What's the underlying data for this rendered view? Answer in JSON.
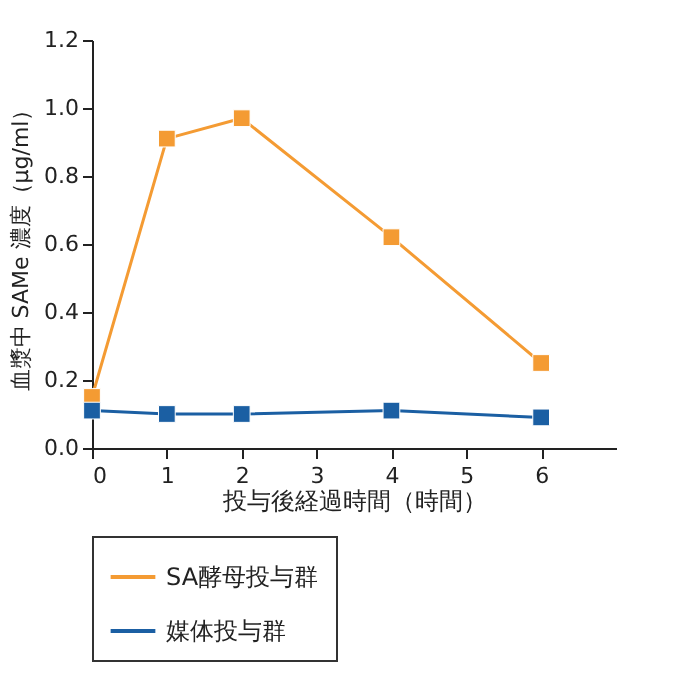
{
  "chart_data": {
    "type": "line",
    "xlabel": "投与後経過時間（時間）",
    "ylabel": "血漿中 SAMe 濃度（μg/ml）",
    "x": [
      0,
      1,
      2,
      4,
      6
    ],
    "series": [
      {
        "name": "SA酵母投与群",
        "color": "#f49b33",
        "values": [
          0.15,
          0.91,
          0.97,
          0.62,
          0.25
        ]
      },
      {
        "name": "媒体投与群",
        "color": "#1b5fa3",
        "values": [
          0.11,
          0.1,
          0.1,
          0.11,
          0.09
        ]
      }
    ],
    "xlim": [
      0,
      7
    ],
    "xticks": [
      0,
      1,
      2,
      3,
      4,
      5,
      6
    ],
    "ylim": [
      0,
      1.2
    ],
    "yticks": [
      {
        "value": 0,
        "label": "0.0"
      },
      0.2,
      0.4,
      0.6,
      0.8,
      {
        "value": 1,
        "label": "1.0"
      },
      1.2
    ],
    "marker": "square",
    "line_style": "solid",
    "legend": "bottom",
    "grid": false
  }
}
